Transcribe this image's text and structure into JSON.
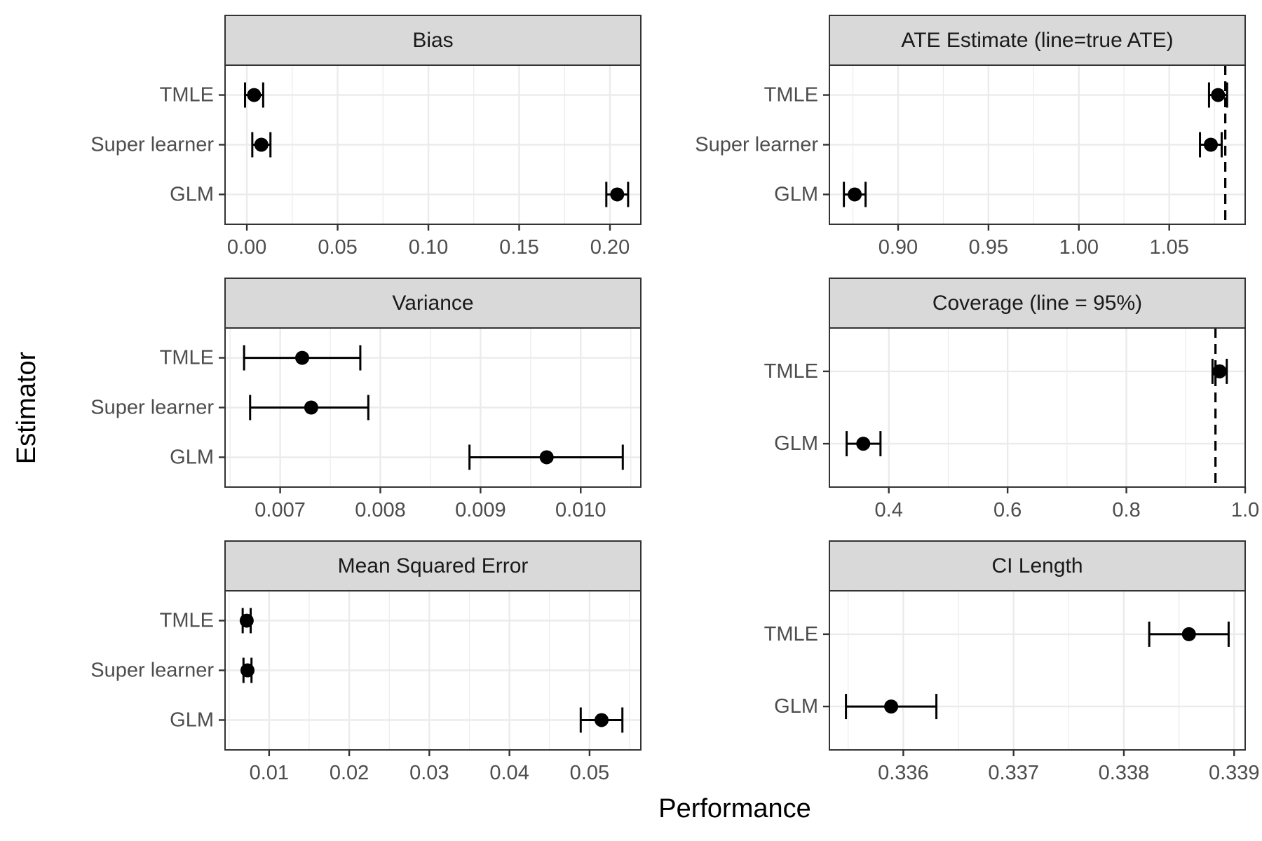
{
  "chart_data": {
    "type": "scatter",
    "x_axis_title": "Performance",
    "y_axis_title": "Estimator",
    "panels": [
      {
        "title": "Bias",
        "categories": [
          "GLM",
          "Super learner",
          "TMLE"
        ],
        "estimates": [
          0.204,
          0.008,
          0.004
        ],
        "lower": [
          0.198,
          0.003,
          -0.001
        ],
        "upper": [
          0.21,
          0.013,
          0.009
        ],
        "xlim": [
          -0.012,
          0.217
        ],
        "x_ticks": [
          0.0,
          0.05,
          0.1,
          0.15,
          0.2
        ],
        "x_tick_labels": [
          "0.00",
          "0.05",
          "0.10",
          "0.15",
          "0.20"
        ],
        "reference_line": null
      },
      {
        "title": "ATE Estimate (line=true ATE)",
        "categories": [
          "GLM",
          "Super learner",
          "TMLE"
        ],
        "estimates": [
          0.876,
          1.073,
          1.077
        ],
        "lower": [
          0.87,
          1.067,
          1.072
        ],
        "upper": [
          0.882,
          1.079,
          1.082
        ],
        "xlim": [
          0.862,
          1.092
        ],
        "x_ticks": [
          0.9,
          0.95,
          1.0,
          1.05
        ],
        "x_tick_labels": [
          "0.90",
          "0.95",
          "1.00",
          "1.05"
        ],
        "reference_line": 1.081
      },
      {
        "title": "Variance",
        "categories": [
          "GLM",
          "Super learner",
          "TMLE"
        ],
        "estimates": [
          0.00966,
          0.00731,
          0.00722
        ],
        "lower": [
          0.00889,
          0.0067,
          0.00664
        ],
        "upper": [
          0.01042,
          0.00788,
          0.0078
        ],
        "xlim": [
          0.00645,
          0.0106
        ],
        "x_ticks": [
          0.007,
          0.008,
          0.009,
          0.01
        ],
        "x_tick_labels": [
          "0.007",
          "0.008",
          "0.009",
          "0.010"
        ],
        "reference_line": null
      },
      {
        "title": "Coverage (line = 95%)",
        "categories": [
          "GLM",
          "TMLE"
        ],
        "estimates": [
          0.357,
          0.957
        ],
        "lower": [
          0.329,
          0.945
        ],
        "upper": [
          0.386,
          0.969
        ],
        "xlim": [
          0.3,
          1.0
        ],
        "x_ticks": [
          0.4,
          0.6,
          0.8,
          1.0
        ],
        "x_tick_labels": [
          "0.4",
          "0.6",
          "0.8",
          "1.0"
        ],
        "reference_line": 0.95
      },
      {
        "title": "Mean Squared Error",
        "categories": [
          "GLM",
          "Super learner",
          "TMLE"
        ],
        "estimates": [
          0.0515,
          0.0073,
          0.0072
        ],
        "lower": [
          0.0489,
          0.0068,
          0.0067
        ],
        "upper": [
          0.0541,
          0.0078,
          0.0077
        ],
        "xlim": [
          0.0045,
          0.0564
        ],
        "x_ticks": [
          0.01,
          0.02,
          0.03,
          0.04,
          0.05
        ],
        "x_tick_labels": [
          "0.01",
          "0.02",
          "0.03",
          "0.04",
          "0.05"
        ],
        "reference_line": null
      },
      {
        "title": "CI Length",
        "categories": [
          "GLM",
          "TMLE"
        ],
        "estimates": [
          0.33589,
          0.33859
        ],
        "lower": [
          0.33548,
          0.33823
        ],
        "upper": [
          0.3363,
          0.33895
        ],
        "xlim": [
          0.33533,
          0.3391
        ],
        "x_ticks": [
          0.336,
          0.337,
          0.338,
          0.339
        ],
        "x_tick_labels": [
          "0.336",
          "0.337",
          "0.338",
          "0.339"
        ],
        "reference_line": null
      }
    ]
  }
}
